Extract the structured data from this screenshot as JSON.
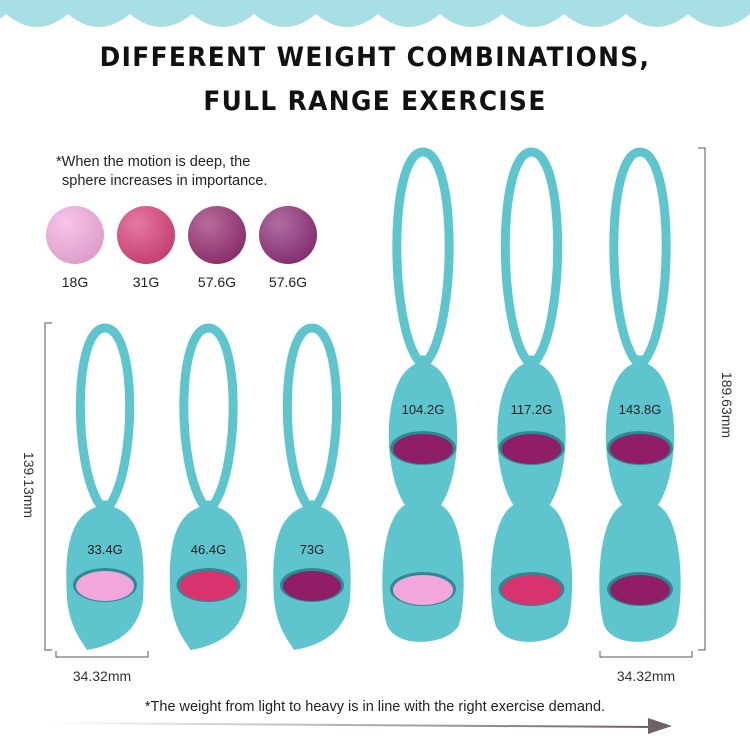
{
  "colors": {
    "teal": "#5ec5cf",
    "wave": "#a8dfe5",
    "arrow": "#6e6168"
  },
  "title": {
    "line1": "DIFFERENT WEIGHT COMBINATIONS,",
    "line2": "FULL RANGE EXERCISE"
  },
  "note_top": {
    "line1": "*When the motion is deep, the",
    "line2": "sphere increases in importance."
  },
  "spheres": [
    {
      "label": "18G",
      "color": "#f3a6dc"
    },
    {
      "label": "31G",
      "color": "#d5336e"
    },
    {
      "label": "57.6G",
      "color": "#8f1e67"
    },
    {
      "label": "57.6G",
      "color": "#85206e"
    }
  ],
  "single_products": [
    {
      "label": "33.4G",
      "window": "#f3a6dc"
    },
    {
      "label": "46.4G",
      "window": "#d9336f"
    },
    {
      "label": "73G",
      "window": "#8f1e67"
    }
  ],
  "double_products": [
    {
      "label": "104.2G",
      "upper": "#8f1e67",
      "lower": "#f3a6dc"
    },
    {
      "label": "117.2G",
      "upper": "#8f1e67",
      "lower": "#d9336f"
    },
    {
      "label": "143.8G",
      "upper": "#8f1e67",
      "lower": "#8f1e67"
    }
  ],
  "dimensions": {
    "left_height": "139.13mm",
    "right_height": "189.63mm",
    "left_width": "34.32mm",
    "right_width": "34.32mm"
  },
  "note_bottom": "*The weight from light to heavy is in line with the right exercise demand."
}
